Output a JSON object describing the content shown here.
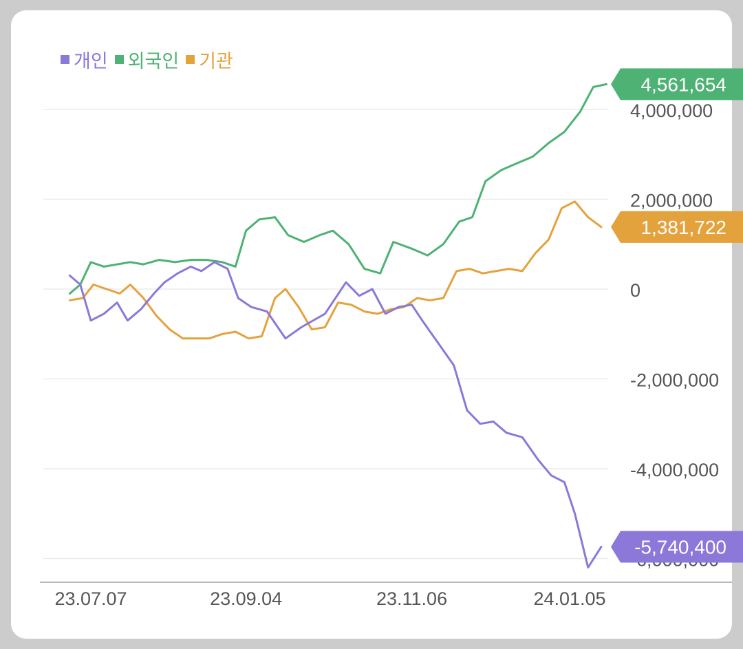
{
  "chart_data": {
    "type": "line",
    "title": "",
    "xlabel": "",
    "ylabel": "",
    "ylim": [
      -6300000,
      4700000
    ],
    "yticks": [
      {
        "value": 4000000,
        "label": "4,000,000"
      },
      {
        "value": 2000000,
        "label": "2,000,000"
      },
      {
        "value": 0,
        "label": "0"
      },
      {
        "value": -2000000,
        "label": "-2,000,000"
      },
      {
        "value": -4000000,
        "label": "-4,000,000"
      },
      {
        "value": -6000000,
        "label": "-6,000,000"
      }
    ],
    "xticks": [
      {
        "value": "2023-07-07",
        "label": "23.07.07"
      },
      {
        "value": "2023-09-04",
        "label": "23.09.04"
      },
      {
        "value": "2023-11-06",
        "label": "23.11.06"
      },
      {
        "value": "2024-01-05",
        "label": "24.01.05"
      }
    ],
    "legend": "top-left",
    "grid": true,
    "series": [
      {
        "name": "개인",
        "color": "#8b78d9",
        "end_label": "-5,740,400",
        "points": [
          [
            "2023-06-29",
            300000
          ],
          [
            "2023-07-03",
            100000
          ],
          [
            "2023-07-07",
            -700000
          ],
          [
            "2023-07-12",
            -550000
          ],
          [
            "2023-07-17",
            -300000
          ],
          [
            "2023-07-21",
            -700000
          ],
          [
            "2023-07-26",
            -450000
          ],
          [
            "2023-07-31",
            -100000
          ],
          [
            "2023-08-04",
            150000
          ],
          [
            "2023-08-09",
            350000
          ],
          [
            "2023-08-14",
            500000
          ],
          [
            "2023-08-18",
            400000
          ],
          [
            "2023-08-23",
            600000
          ],
          [
            "2023-08-28",
            450000
          ],
          [
            "2023-09-01",
            -200000
          ],
          [
            "2023-09-06",
            -400000
          ],
          [
            "2023-09-12",
            -500000
          ],
          [
            "2023-09-19",
            -1100000
          ],
          [
            "2023-09-25",
            -850000
          ],
          [
            "2023-10-04",
            -550000
          ],
          [
            "2023-10-12",
            150000
          ],
          [
            "2023-10-17",
            -150000
          ],
          [
            "2023-10-22",
            0
          ],
          [
            "2023-10-27",
            -550000
          ],
          [
            "2023-11-01",
            -400000
          ],
          [
            "2023-11-06",
            -350000
          ],
          [
            "2023-11-10",
            -700000
          ],
          [
            "2023-11-16",
            -1200000
          ],
          [
            "2023-11-22",
            -1700000
          ],
          [
            "2023-11-27",
            -2700000
          ],
          [
            "2023-12-02",
            -3000000
          ],
          [
            "2023-12-07",
            -2950000
          ],
          [
            "2023-12-12",
            -3200000
          ],
          [
            "2023-12-18",
            -3300000
          ],
          [
            "2023-12-24",
            -3800000
          ],
          [
            "2023-12-29",
            -4150000
          ],
          [
            "2024-01-03",
            -4300000
          ],
          [
            "2024-01-07",
            -5000000
          ],
          [
            "2024-01-12",
            -6200000
          ],
          [
            "2024-01-17",
            -5740400
          ]
        ]
      },
      {
        "name": "외국인",
        "color": "#4db273",
        "end_label": "4,561,654",
        "points": [
          [
            "2023-06-29",
            -100000
          ],
          [
            "2023-07-03",
            100000
          ],
          [
            "2023-07-07",
            600000
          ],
          [
            "2023-07-12",
            500000
          ],
          [
            "2023-07-17",
            550000
          ],
          [
            "2023-07-22",
            600000
          ],
          [
            "2023-07-27",
            550000
          ],
          [
            "2023-08-02",
            650000
          ],
          [
            "2023-08-08",
            600000
          ],
          [
            "2023-08-14",
            650000
          ],
          [
            "2023-08-20",
            650000
          ],
          [
            "2023-08-26",
            600000
          ],
          [
            "2023-08-31",
            500000
          ],
          [
            "2023-09-04",
            1300000
          ],
          [
            "2023-09-09",
            1550000
          ],
          [
            "2023-09-15",
            1600000
          ],
          [
            "2023-09-20",
            1200000
          ],
          [
            "2023-09-26",
            1050000
          ],
          [
            "2023-10-02",
            1200000
          ],
          [
            "2023-10-07",
            1300000
          ],
          [
            "2023-10-13",
            1000000
          ],
          [
            "2023-10-19",
            450000
          ],
          [
            "2023-10-25",
            350000
          ],
          [
            "2023-10-30",
            1050000
          ],
          [
            "2023-11-06",
            900000
          ],
          [
            "2023-11-12",
            750000
          ],
          [
            "2023-11-18",
            1000000
          ],
          [
            "2023-11-24",
            1500000
          ],
          [
            "2023-11-29",
            1600000
          ],
          [
            "2023-12-04",
            2400000
          ],
          [
            "2023-12-10",
            2650000
          ],
          [
            "2023-12-16",
            2800000
          ],
          [
            "2023-12-22",
            2950000
          ],
          [
            "2023-12-28",
            3250000
          ],
          [
            "2024-01-03",
            3500000
          ],
          [
            "2024-01-09",
            3950000
          ],
          [
            "2024-01-14",
            4500000
          ],
          [
            "2024-01-19",
            4561654
          ]
        ]
      },
      {
        "name": "기관",
        "color": "#e4a23d",
        "end_label": "1,381,722",
        "points": [
          [
            "2023-06-29",
            -250000
          ],
          [
            "2023-07-04",
            -200000
          ],
          [
            "2023-07-08",
            100000
          ],
          [
            "2023-07-13",
            0
          ],
          [
            "2023-07-18",
            -100000
          ],
          [
            "2023-07-22",
            100000
          ],
          [
            "2023-07-27",
            -200000
          ],
          [
            "2023-08-01",
            -600000
          ],
          [
            "2023-08-06",
            -900000
          ],
          [
            "2023-08-11",
            -1100000
          ],
          [
            "2023-08-16",
            -1100000
          ],
          [
            "2023-08-21",
            -1100000
          ],
          [
            "2023-08-26",
            -1000000
          ],
          [
            "2023-08-31",
            -950000
          ],
          [
            "2023-09-05",
            -1100000
          ],
          [
            "2023-09-10",
            -1050000
          ],
          [
            "2023-09-15",
            -200000
          ],
          [
            "2023-09-19",
            0
          ],
          [
            "2023-09-24",
            -400000
          ],
          [
            "2023-09-29",
            -900000
          ],
          [
            "2023-10-04",
            -850000
          ],
          [
            "2023-10-09",
            -300000
          ],
          [
            "2023-10-14",
            -350000
          ],
          [
            "2023-10-19",
            -500000
          ],
          [
            "2023-10-24",
            -550000
          ],
          [
            "2023-10-29",
            -450000
          ],
          [
            "2023-11-03",
            -400000
          ],
          [
            "2023-11-08",
            -200000
          ],
          [
            "2023-11-13",
            -250000
          ],
          [
            "2023-11-18",
            -200000
          ],
          [
            "2023-11-23",
            400000
          ],
          [
            "2023-11-28",
            450000
          ],
          [
            "2023-12-03",
            350000
          ],
          [
            "2023-12-08",
            400000
          ],
          [
            "2023-12-13",
            450000
          ],
          [
            "2023-12-18",
            400000
          ],
          [
            "2023-12-23",
            800000
          ],
          [
            "2023-12-28",
            1100000
          ],
          [
            "2024-01-02",
            1800000
          ],
          [
            "2024-01-07",
            1950000
          ],
          [
            "2024-01-12",
            1600000
          ],
          [
            "2024-01-17",
            1381722
          ]
        ]
      }
    ]
  }
}
